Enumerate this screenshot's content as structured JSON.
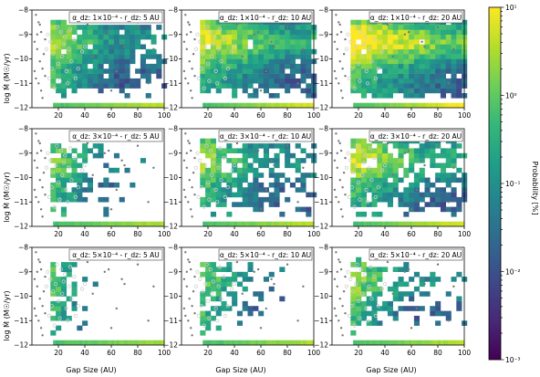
{
  "chart_data": {
    "type": "heatmap",
    "rows": 3,
    "cols": 3,
    "xlabel": "Gap Size (AU)",
    "ylabel": "log Ṁ (M☉/yr)",
    "xlim": [
      0,
      100
    ],
    "ylim": [
      -12,
      -8
    ],
    "xticks": [
      20,
      40,
      60,
      80,
      100
    ],
    "yticks": [
      -12,
      -11,
      -10,
      -9,
      -8
    ],
    "xtick_labels": [
      "20",
      "40",
      "60",
      "80",
      "100"
    ],
    "ytick_labels": [
      "−12",
      "−11",
      "−10",
      "−9",
      "−8"
    ],
    "colorbar": {
      "label": "Probability [%]",
      "scale": "log",
      "min": 0.001,
      "max": 10,
      "tick_labels": [
        "10⁻³",
        "10⁻²",
        "10⁻¹",
        "10⁰",
        "10¹"
      ],
      "colors": [
        "#440154",
        "#482878",
        "#3e4989",
        "#31688e",
        "#26828e",
        "#1f9e89",
        "#35b779",
        "#6ece58",
        "#b5de2b",
        "#fde725"
      ]
    },
    "panels": [
      {
        "title": "α_dz: 1×10⁻⁴ - r_dz: 5 AU",
        "alpha": "1×10⁻⁴",
        "r_dz_au": 5,
        "r": 0.6,
        "tail": 0.05,
        "cols": [
          0.95,
          0.9,
          0.95,
          0.95,
          0.85,
          0.9,
          0.9,
          0.55,
          0.45,
          0.4
        ]
      },
      {
        "title": "α_dz: 1×10⁻⁴ - r_dz: 10 AU",
        "alpha": "1×10⁻⁴",
        "r_dz_au": 10,
        "r": 0.95,
        "tail": 0.25,
        "cols": [
          0.95,
          0.95,
          1.0,
          1.0,
          0.95,
          1.0,
          0.95,
          0.95,
          0.9,
          0.85
        ]
      },
      {
        "title": "α_dz: 1×10⁻⁴ - r_dz: 20 AU",
        "alpha": "1×10⁻⁴",
        "r_dz_au": 20,
        "r": 1.3,
        "tail": 0.45,
        "cols": [
          0.95,
          1.0,
          0.95,
          1.0,
          0.95,
          1.0,
          0.95,
          1.0,
          0.95,
          0.9
        ]
      },
      {
        "title": "α_dz: 3×10⁻⁴ - r_dz: 5 AU",
        "alpha": "3×10⁻⁴",
        "r_dz_au": 5,
        "r": 0.4,
        "tail": 0.0,
        "cols": [
          0.85,
          0.6,
          0.55,
          0.3,
          0.3,
          0.25,
          0.1,
          0.1,
          0.0,
          0.0
        ]
      },
      {
        "title": "α_dz: 3×10⁻⁴ - r_dz: 10 AU",
        "alpha": "3×10⁻⁴",
        "r_dz_au": 10,
        "r": 0.6,
        "tail": 0.05,
        "cols": [
          0.9,
          0.85,
          0.8,
          0.75,
          0.7,
          0.6,
          0.55,
          0.45,
          0.3,
          0.25
        ]
      },
      {
        "title": "α_dz: 3×10⁻⁴ - r_dz: 20 AU",
        "alpha": "3×10⁻⁴",
        "r_dz_au": 20,
        "r": 0.9,
        "tail": 0.15,
        "cols": [
          0.9,
          0.85,
          0.85,
          0.8,
          0.75,
          0.75,
          0.7,
          0.7,
          0.65,
          0.55
        ]
      },
      {
        "title": "α_dz: 5×10⁻⁴ - r_dz: 5 AU",
        "alpha": "5×10⁻⁴",
        "r_dz_au": 5,
        "r": 0.25,
        "tail": 0.0,
        "cols": [
          0.6,
          0.35,
          0.15,
          0.05,
          0.0,
          0.0,
          0.0,
          0.0,
          0.0,
          0.0
        ]
      },
      {
        "title": "α_dz: 5×10⁻⁴ - r_dz: 10 AU",
        "alpha": "5×10⁻⁴",
        "r_dz_au": 10,
        "r": 0.4,
        "tail": 0.0,
        "cols": [
          0.7,
          0.5,
          0.35,
          0.3,
          0.2,
          0.2,
          0.1,
          0.05,
          0.0,
          0.0
        ]
      },
      {
        "title": "α_dz: 5×10⁻⁴ - r_dz: 20 AU",
        "alpha": "5×10⁻⁴",
        "r_dz_au": 20,
        "r": 0.55,
        "tail": 0.05,
        "cols": [
          0.75,
          0.6,
          0.5,
          0.45,
          0.4,
          0.35,
          0.25,
          0.2,
          0.15,
          0.1
        ]
      }
    ],
    "observations": {
      "open_circles": [
        [
          12,
          -9.0
        ],
        [
          14,
          -9.3
        ],
        [
          16,
          -9.8
        ],
        [
          18,
          -9.5
        ],
        [
          20,
          -10.2
        ],
        [
          22,
          -8.9
        ],
        [
          24,
          -9.4
        ],
        [
          26,
          -10.5
        ],
        [
          28,
          -9.6
        ],
        [
          30,
          -10.1
        ],
        [
          32,
          -9.2
        ],
        [
          35,
          -10.4
        ],
        [
          38,
          -9.7
        ],
        [
          13,
          -10.8
        ],
        [
          17,
          -11.2
        ],
        [
          21,
          -10.9
        ],
        [
          25,
          -9.1
        ],
        [
          33,
          -10.8
        ],
        [
          40,
          -9.5
        ],
        [
          11,
          -9.6
        ],
        [
          15,
          -10.4
        ],
        [
          19,
          -8.7
        ],
        [
          23,
          -9.9
        ],
        [
          27,
          -11.0
        ],
        [
          29,
          -8.8
        ]
      ],
      "filled_points": [
        [
          3,
          -8.2
        ],
        [
          5,
          -8.5
        ],
        [
          7,
          -8.9
        ],
        [
          2,
          -9.3
        ],
        [
          4,
          -9.6
        ],
        [
          6,
          -10.1
        ],
        [
          8,
          -10.4
        ],
        [
          3,
          -10.8
        ],
        [
          5,
          -11.0
        ],
        [
          7,
          -11.3
        ],
        [
          9,
          -9.8
        ],
        [
          10,
          -9.2
        ],
        [
          4,
          -9.0
        ],
        [
          6,
          -8.6
        ],
        [
          8,
          -11.6
        ],
        [
          2,
          -10.5
        ],
        [
          10,
          -10.7
        ],
        [
          52,
          -8.4
        ],
        [
          55,
          -9.0
        ],
        [
          58,
          -8.9
        ],
        [
          64,
          -10.5
        ],
        [
          68,
          -9.3
        ],
        [
          70,
          -9.5
        ],
        [
          80,
          -8.3
        ],
        [
          80,
          -8.5
        ],
        [
          80,
          -8.7
        ],
        [
          92,
          -9.6
        ],
        [
          88,
          -11.0
        ],
        [
          60,
          -11.3
        ],
        [
          46,
          -9.9
        ],
        [
          42,
          -8.6
        ]
      ]
    }
  }
}
